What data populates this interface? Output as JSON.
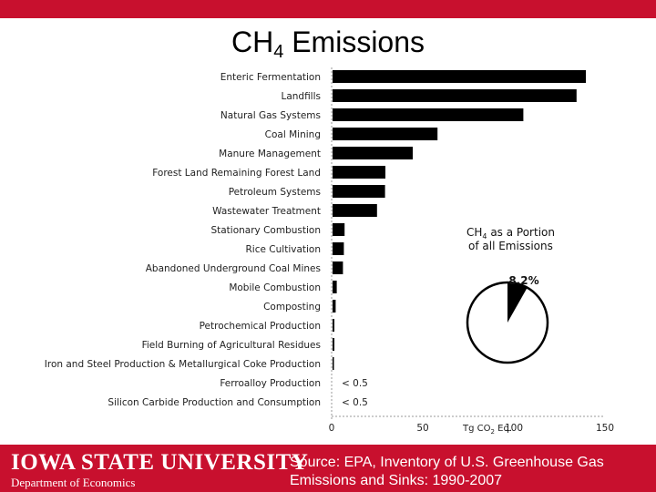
{
  "slide": {
    "title_main": "CH",
    "title_sub": "4",
    "title_rest": " Emissions"
  },
  "footer": {
    "university": "IOWA STATE UNIVERSITY",
    "department": "Department of Economics",
    "source": "Source: EPA, Inventory of U.S. Greenhouse Gas Emissions and Sinks: 1990-2007"
  },
  "colors": {
    "brand_red": "#c8102e",
    "bar": "#000000"
  },
  "chart_data": {
    "type": "bar",
    "orientation": "horizontal",
    "categories": [
      "Enteric Fermentation",
      "Landfills",
      "Natural Gas Systems",
      "Coal Mining",
      "Manure Management",
      "Forest Land Remaining Forest Land",
      "Petroleum Systems",
      "Wastewater Treatment",
      "Stationary Combustion",
      "Rice Cultivation",
      "Abandoned Underground Coal Mines",
      "Mobile Combustion",
      "Composting",
      "Petrochemical Production",
      "Field Burning of Agricultural Residues",
      "Iron and Steel Production & Metallurgical Coke Production",
      "Ferroalloy Production",
      "Silicon Carbide Production and Consumption"
    ],
    "values": [
      139.0,
      133.9,
      104.7,
      57.6,
      44.0,
      29.0,
      28.8,
      24.4,
      6.6,
      6.2,
      5.7,
      2.3,
      1.7,
      1.0,
      1.0,
      0.7,
      0.0,
      0.0
    ],
    "bar_value_labels": [
      "",
      "",
      "",
      "",
      "",
      "",
      "",
      "",
      "",
      "",
      "",
      "",
      "",
      "",
      "",
      "",
      "< 0.5",
      "< 0.5"
    ],
    "xlabel_main": "Tg CO",
    "xlabel_sub": "2",
    "xlabel_rest": " Eq.",
    "xlim": [
      0,
      150
    ],
    "xticks": [
      0,
      50,
      100,
      150
    ],
    "grid": false,
    "inset": {
      "type": "pie",
      "title_line1_main": "CH",
      "title_line1_sub": "4",
      "title_line1_rest": " as a Portion",
      "title_line2": "of all Emissions",
      "slice_percent": 8.2,
      "slice_label": "8.2%"
    }
  }
}
